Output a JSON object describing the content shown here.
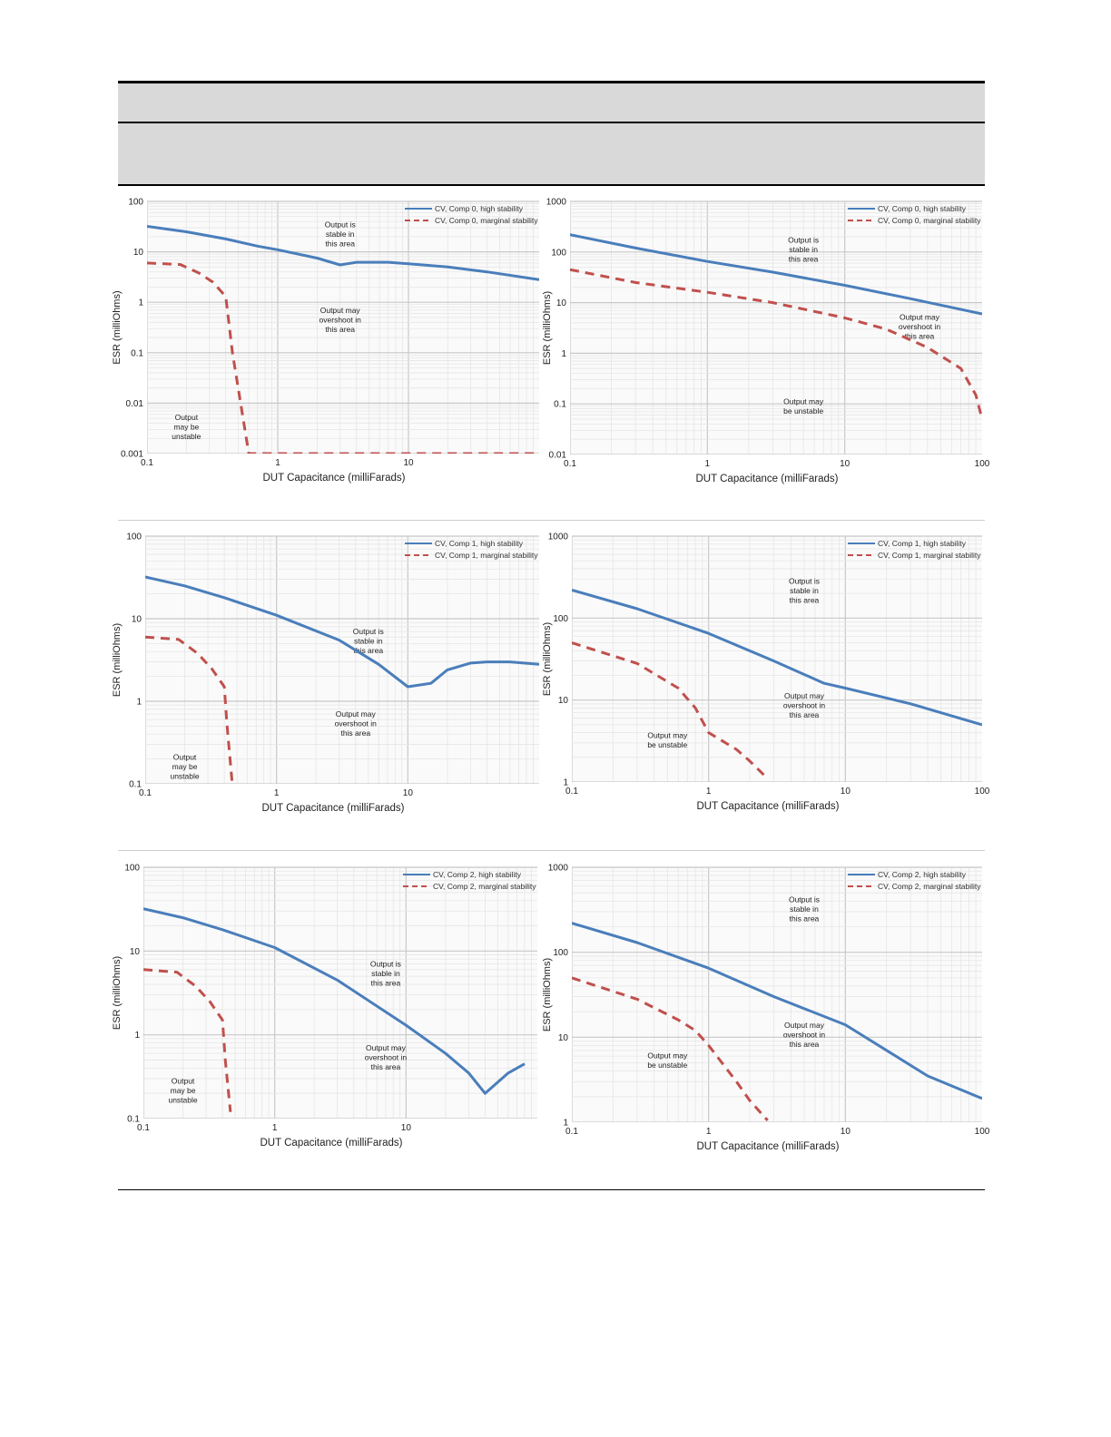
{
  "table_header": {
    "row1": "",
    "row2": ""
  },
  "colors": {
    "high": "#4a7ebb",
    "marginal": "#c0504d",
    "grid_major": "#c8c8c8",
    "grid_minor": "#e6e6e6"
  },
  "chart_data": [
    {
      "type": "line",
      "xlabel": "DUT Capacitance (milliFarads)",
      "ylabel": "ESR (milliOhms)",
      "xscale": "log",
      "yscale": "log",
      "xlim": [
        0.1,
        100
      ],
      "ylim": [
        0.001,
        100
      ],
      "xticks": [
        "0.1",
        "1",
        "10"
      ],
      "yticks": [
        "100",
        "10",
        "1",
        "0.1",
        "0.01",
        "0.001"
      ],
      "legend_position": "top-right",
      "series": [
        {
          "name": "CV, Comp 0, high stability",
          "style": "solid",
          "x": [
            0.1,
            0.2,
            0.4,
            0.7,
            1,
            2,
            3,
            4,
            7,
            10,
            20,
            40,
            100
          ],
          "y": [
            32,
            25,
            18,
            13,
            11,
            7.5,
            5.5,
            6.2,
            6.2,
            5.8,
            5,
            4,
            2.8
          ]
        },
        {
          "name": "CV, Comp 0, marginal stability",
          "style": "dashed",
          "x": [
            0.1,
            0.18,
            0.25,
            0.32,
            0.4,
            0.45,
            0.6,
            1,
            10,
            100
          ],
          "y": [
            6,
            5.6,
            3.8,
            2.5,
            1.3,
            0.1,
            0.001,
            0.001,
            0.001,
            0.001
          ]
        }
      ],
      "annotations": [
        {
          "text": "Output is\nstable in\nthis area",
          "x": 3,
          "y": 20
        },
        {
          "text": "Output may\novershoot in\nthis area",
          "x": 3,
          "y": 0.4
        },
        {
          "text": "Output\nmay be\nunstable",
          "x": 0.2,
          "y": 0.003
        }
      ]
    },
    {
      "type": "line",
      "xlabel": "DUT Capacitance (milliFarads)",
      "ylabel": "ESR (milliOhms)",
      "xscale": "log",
      "yscale": "log",
      "xlim": [
        0.1,
        100
      ],
      "ylim": [
        0.01,
        1000
      ],
      "xticks": [
        "0.1",
        "1",
        "10",
        "100"
      ],
      "yticks": [
        "1000",
        "100",
        "10",
        "1",
        "0.1",
        "0.01"
      ],
      "legend_position": "top-right",
      "series": [
        {
          "name": "CV, Comp 0, high stability",
          "style": "solid",
          "x": [
            0.1,
            0.3,
            1,
            3,
            10,
            30,
            100
          ],
          "y": [
            220,
            120,
            65,
            40,
            22,
            12,
            6
          ]
        },
        {
          "name": "CV, Comp 0, marginal stability",
          "style": "dashed",
          "x": [
            0.1,
            0.3,
            1,
            3,
            10,
            20,
            40,
            70,
            90,
            100
          ],
          "y": [
            45,
            25,
            16,
            10,
            5,
            3,
            1.3,
            0.5,
            0.15,
            0.05
          ]
        }
      ],
      "annotations": [
        {
          "text": "Output is\nstable in\nthis area",
          "x": 5,
          "y": 100
        },
        {
          "text": "Output may\novershoot in\nthis area",
          "x": 35,
          "y": 3
        },
        {
          "text": "Output may\nbe unstable",
          "x": 5,
          "y": 0.08
        }
      ]
    },
    {
      "type": "line",
      "xlabel": "DUT Capacitance (milliFarads)",
      "ylabel": "ESR (milliOhms)",
      "xscale": "log",
      "yscale": "log",
      "xlim": [
        0.1,
        100
      ],
      "ylim": [
        0.1,
        100
      ],
      "xticks": [
        "0.1",
        "1",
        "10"
      ],
      "yticks": [
        "100",
        "10",
        "1",
        "0.1"
      ],
      "legend_position": "top-right",
      "series": [
        {
          "name": "CV, Comp 1, high stability",
          "style": "solid",
          "x": [
            0.1,
            0.2,
            0.4,
            1,
            3,
            6,
            10,
            15,
            20,
            30,
            40,
            60,
            100
          ],
          "y": [
            32,
            25,
            18,
            11,
            5.5,
            2.8,
            1.5,
            1.65,
            2.4,
            2.9,
            3,
            3,
            2.8
          ]
        },
        {
          "name": "CV, Comp 1, marginal stability",
          "style": "dashed",
          "x": [
            0.1,
            0.18,
            0.25,
            0.32,
            0.4,
            0.42,
            0.46
          ],
          "y": [
            6,
            5.6,
            3.8,
            2.5,
            1.5,
            0.5,
            0.1
          ]
        }
      ],
      "annotations": [
        {
          "text": "Output is\nstable in\nthis area",
          "x": 5,
          "y": 5
        },
        {
          "text": "Output may\novershoot in\nthis area",
          "x": 4,
          "y": 0.5
        },
        {
          "text": "Output\nmay be\nunstable",
          "x": 0.2,
          "y": 0.15
        }
      ]
    },
    {
      "type": "line",
      "xlabel": "DUT Capacitance (milliFarads)",
      "ylabel": "ESR (milliOhms)",
      "xscale": "log",
      "yscale": "log",
      "xlim": [
        0.1,
        100
      ],
      "ylim": [
        1,
        1000
      ],
      "xticks": [
        "0.1",
        "1",
        "10",
        "100"
      ],
      "yticks": [
        "1000",
        "100",
        "10",
        "1"
      ],
      "legend_position": "top-right",
      "series": [
        {
          "name": "CV, Comp 1, high stability",
          "style": "solid",
          "x": [
            0.1,
            0.3,
            1,
            3,
            7,
            10,
            30,
            100
          ],
          "y": [
            220,
            130,
            65,
            30,
            16,
            14,
            9,
            5
          ]
        },
        {
          "name": "CV, Comp 1, marginal stability",
          "style": "dashed",
          "x": [
            0.1,
            0.3,
            0.6,
            0.8,
            1,
            1.6,
            2,
            2.7
          ],
          "y": [
            50,
            28,
            14,
            8,
            4,
            2.5,
            1.8,
            1.1
          ]
        }
      ],
      "annotations": [
        {
          "text": "Output is\nstable in\nthis area",
          "x": 5,
          "y": 200
        },
        {
          "text": "Output may\novershoot in\nthis area",
          "x": 5,
          "y": 8
        },
        {
          "text": "Output may\nbe unstable",
          "x": 0.5,
          "y": 3
        }
      ]
    },
    {
      "type": "line",
      "xlabel": "DUT Capacitance (milliFarads)",
      "ylabel": "ESR (milliOhms)",
      "xscale": "log",
      "yscale": "log",
      "xlim": [
        0.1,
        100
      ],
      "ylim": [
        0.1,
        100
      ],
      "xticks": [
        "0.1",
        "1",
        "10"
      ],
      "yticks": [
        "100",
        "10",
        "1",
        "0.1"
      ],
      "legend_position": "top-right",
      "series": [
        {
          "name": "CV, Comp 2, high stability",
          "style": "solid",
          "x": [
            0.1,
            0.2,
            0.4,
            1,
            3,
            10,
            20,
            30,
            40,
            60,
            80
          ],
          "y": [
            32,
            25,
            18,
            11,
            4.5,
            1.3,
            0.6,
            0.35,
            0.2,
            0.35,
            0.45
          ]
        },
        {
          "name": "CV, Comp 2, marginal stability",
          "style": "dashed",
          "x": [
            0.1,
            0.18,
            0.25,
            0.32,
            0.4,
            0.42,
            0.46
          ],
          "y": [
            6,
            5.6,
            3.8,
            2.5,
            1.5,
            0.5,
            0.12
          ]
        }
      ],
      "annotations": [
        {
          "text": "Output is\nstable in\nthis area",
          "x": 7,
          "y": 5
        },
        {
          "text": "Output may\novershoot in\nthis area",
          "x": 7,
          "y": 0.5
        },
        {
          "text": "Output\nmay be\nunstable",
          "x": 0.2,
          "y": 0.2
        }
      ]
    },
    {
      "type": "line",
      "xlabel": "DUT Capacitance (milliFarads)",
      "ylabel": "ESR (milliOhms)",
      "xscale": "log",
      "yscale": "log",
      "xlim": [
        0.1,
        100
      ],
      "ylim": [
        1,
        1000
      ],
      "xticks": [
        "0.1",
        "1",
        "10",
        "100"
      ],
      "yticks": [
        "1000",
        "100",
        "10",
        "1"
      ],
      "legend_position": "top-right",
      "series": [
        {
          "name": "CV, Comp 2, high stability",
          "style": "solid",
          "x": [
            0.1,
            0.3,
            1,
            3,
            10,
            20,
            40,
            100
          ],
          "y": [
            220,
            130,
            65,
            30,
            14,
            7,
            3.5,
            1.9
          ]
        },
        {
          "name": "CV, Comp 2, marginal stability",
          "style": "dashed",
          "x": [
            0.1,
            0.3,
            0.6,
            0.8,
            1,
            1.6,
            2,
            2.7
          ],
          "y": [
            50,
            28,
            16,
            12,
            8,
            3,
            1.8,
            1.05
          ]
        }
      ],
      "annotations": [
        {
          "text": "Output is\nstable in\nthis area",
          "x": 5,
          "y": 300
        },
        {
          "text": "Output may\novershoot in\nthis area",
          "x": 5,
          "y": 10
        },
        {
          "text": "Output may\nbe unstable",
          "x": 0.5,
          "y": 5
        }
      ]
    }
  ]
}
